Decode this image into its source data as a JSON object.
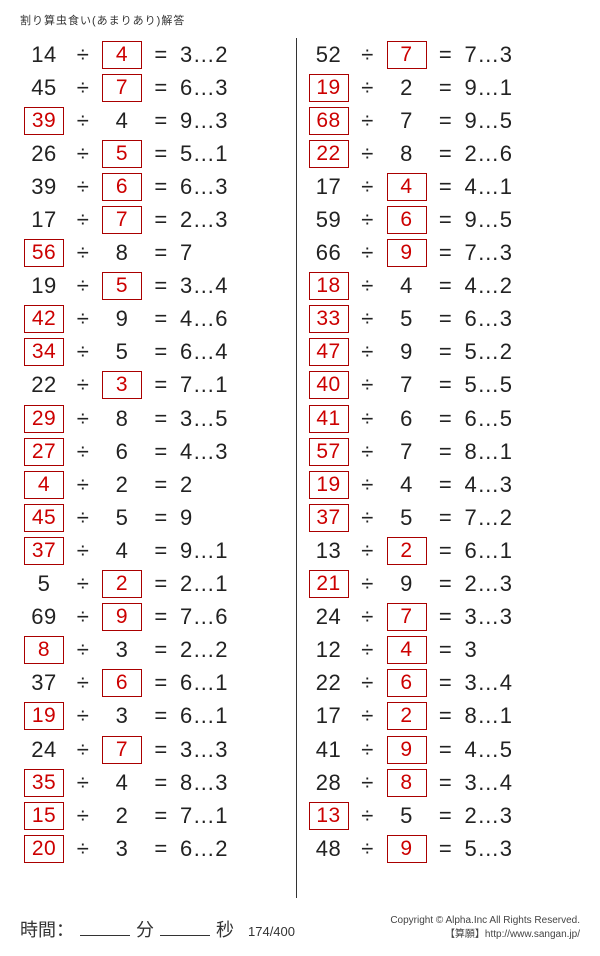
{
  "title": "割り算虫食い(あまりあり)解答",
  "time_label": "時間：",
  "min_label": "分",
  "sec_label": "秒",
  "page_no": "174/400",
  "copyright1": "Copyright © Alpha.Inc All Rights Reserved.",
  "copyright2": "【算願】http://www.sangan.jp/",
  "left": [
    {
      "a": "14",
      "b": "4",
      "r": "3…2",
      "boxA": false,
      "boxB": true
    },
    {
      "a": "45",
      "b": "7",
      "r": "6…3",
      "boxA": false,
      "boxB": true
    },
    {
      "a": "39",
      "b": "4",
      "r": "9…3",
      "boxA": true,
      "boxB": false
    },
    {
      "a": "26",
      "b": "5",
      "r": "5…1",
      "boxA": false,
      "boxB": true
    },
    {
      "a": "39",
      "b": "6",
      "r": "6…3",
      "boxA": false,
      "boxB": true
    },
    {
      "a": "17",
      "b": "7",
      "r": "2…3",
      "boxA": false,
      "boxB": true
    },
    {
      "a": "56",
      "b": "8",
      "r": "7",
      "boxA": true,
      "boxB": false
    },
    {
      "a": "19",
      "b": "5",
      "r": "3…4",
      "boxA": false,
      "boxB": true
    },
    {
      "a": "42",
      "b": "9",
      "r": "4…6",
      "boxA": true,
      "boxB": false
    },
    {
      "a": "34",
      "b": "5",
      "r": "6…4",
      "boxA": true,
      "boxB": false
    },
    {
      "a": "22",
      "b": "3",
      "r": "7…1",
      "boxA": false,
      "boxB": true
    },
    {
      "a": "29",
      "b": "8",
      "r": "3…5",
      "boxA": true,
      "boxB": false
    },
    {
      "a": "27",
      "b": "6",
      "r": "4…3",
      "boxA": true,
      "boxB": false
    },
    {
      "a": "4",
      "b": "2",
      "r": "2",
      "boxA": true,
      "boxB": false
    },
    {
      "a": "45",
      "b": "5",
      "r": "9",
      "boxA": true,
      "boxB": false
    },
    {
      "a": "37",
      "b": "4",
      "r": "9…1",
      "boxA": true,
      "boxB": false
    },
    {
      "a": "5",
      "b": "2",
      "r": "2…1",
      "boxA": false,
      "boxB": true
    },
    {
      "a": "69",
      "b": "9",
      "r": "7…6",
      "boxA": false,
      "boxB": true
    },
    {
      "a": "8",
      "b": "3",
      "r": "2…2",
      "boxA": true,
      "boxB": false
    },
    {
      "a": "37",
      "b": "6",
      "r": "6…1",
      "boxA": false,
      "boxB": true
    },
    {
      "a": "19",
      "b": "3",
      "r": "6…1",
      "boxA": true,
      "boxB": false
    },
    {
      "a": "24",
      "b": "7",
      "r": "3…3",
      "boxA": false,
      "boxB": true
    },
    {
      "a": "35",
      "b": "4",
      "r": "8…3",
      "boxA": true,
      "boxB": false
    },
    {
      "a": "15",
      "b": "2",
      "r": "7…1",
      "boxA": true,
      "boxB": false
    },
    {
      "a": "20",
      "b": "3",
      "r": "6…2",
      "boxA": true,
      "boxB": false
    }
  ],
  "right": [
    {
      "a": "52",
      "b": "7",
      "r": "7…3",
      "boxA": false,
      "boxB": true
    },
    {
      "a": "19",
      "b": "2",
      "r": "9…1",
      "boxA": true,
      "boxB": false
    },
    {
      "a": "68",
      "b": "7",
      "r": "9…5",
      "boxA": true,
      "boxB": false
    },
    {
      "a": "22",
      "b": "8",
      "r": "2…6",
      "boxA": true,
      "boxB": false
    },
    {
      "a": "17",
      "b": "4",
      "r": "4…1",
      "boxA": false,
      "boxB": true
    },
    {
      "a": "59",
      "b": "6",
      "r": "9…5",
      "boxA": false,
      "boxB": true
    },
    {
      "a": "66",
      "b": "9",
      "r": "7…3",
      "boxA": false,
      "boxB": true
    },
    {
      "a": "18",
      "b": "4",
      "r": "4…2",
      "boxA": true,
      "boxB": false
    },
    {
      "a": "33",
      "b": "5",
      "r": "6…3",
      "boxA": true,
      "boxB": false
    },
    {
      "a": "47",
      "b": "9",
      "r": "5…2",
      "boxA": true,
      "boxB": false
    },
    {
      "a": "40",
      "b": "7",
      "r": "5…5",
      "boxA": true,
      "boxB": false
    },
    {
      "a": "41",
      "b": "6",
      "r": "6…5",
      "boxA": true,
      "boxB": false
    },
    {
      "a": "57",
      "b": "7",
      "r": "8…1",
      "boxA": true,
      "boxB": false
    },
    {
      "a": "19",
      "b": "4",
      "r": "4…3",
      "boxA": true,
      "boxB": false
    },
    {
      "a": "37",
      "b": "5",
      "r": "7…2",
      "boxA": true,
      "boxB": false
    },
    {
      "a": "13",
      "b": "2",
      "r": "6…1",
      "boxA": false,
      "boxB": true
    },
    {
      "a": "21",
      "b": "9",
      "r": "2…3",
      "boxA": true,
      "boxB": false
    },
    {
      "a": "24",
      "b": "7",
      "r": "3…3",
      "boxA": false,
      "boxB": true
    },
    {
      "a": "12",
      "b": "4",
      "r": "3",
      "boxA": false,
      "boxB": true
    },
    {
      "a": "22",
      "b": "6",
      "r": "3…4",
      "boxA": false,
      "boxB": true
    },
    {
      "a": "17",
      "b": "2",
      "r": "8…1",
      "boxA": false,
      "boxB": true
    },
    {
      "a": "41",
      "b": "9",
      "r": "4…5",
      "boxA": false,
      "boxB": true
    },
    {
      "a": "28",
      "b": "8",
      "r": "3…4",
      "boxA": false,
      "boxB": true
    },
    {
      "a": "13",
      "b": "5",
      "r": "2…3",
      "boxA": true,
      "boxB": false
    },
    {
      "a": "48",
      "b": "9",
      "r": "5…3",
      "boxA": false,
      "boxB": true
    }
  ]
}
